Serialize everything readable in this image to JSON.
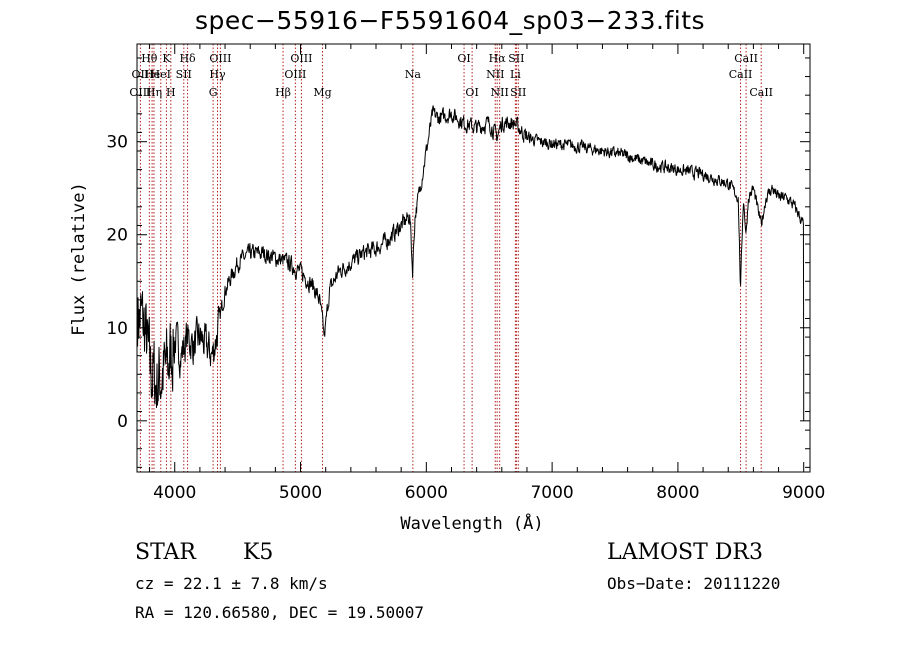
{
  "chart_data": {
    "type": "line",
    "title": "spec−55916−F5591604_sp03−233.fits",
    "xlabel": "Wavelength (Å)",
    "ylabel": "Flux (relative)",
    "xlim": [
      3700,
      9050
    ],
    "ylim": [
      -5.5,
      40.5
    ],
    "xticks": [
      4000,
      5000,
      6000,
      7000,
      8000,
      9000
    ],
    "yticks": [
      0,
      10,
      20,
      30
    ],
    "spectrum_knots": [
      [
        3700,
        12
      ],
      [
        3760,
        10
      ],
      [
        3800,
        6
      ],
      [
        3850,
        4
      ],
      [
        3900,
        5
      ],
      [
        3950,
        6
      ],
      [
        4000,
        9
      ],
      [
        4050,
        7
      ],
      [
        4100,
        9
      ],
      [
        4150,
        8
      ],
      [
        4200,
        9
      ],
      [
        4250,
        8
      ],
      [
        4300,
        7
      ],
      [
        4330,
        9
      ],
      [
        4400,
        14
      ],
      [
        4500,
        17
      ],
      [
        4600,
        18
      ],
      [
        4700,
        18
      ],
      [
        4800,
        17.5
      ],
      [
        4900,
        17
      ],
      [
        5000,
        16
      ],
      [
        5100,
        14.5
      ],
      [
        5150,
        13
      ],
      [
        5190,
        9
      ],
      [
        5230,
        14
      ],
      [
        5300,
        16
      ],
      [
        5400,
        17
      ],
      [
        5500,
        18
      ],
      [
        5600,
        18.5
      ],
      [
        5700,
        19.5
      ],
      [
        5800,
        21
      ],
      [
        5870,
        22
      ],
      [
        5890,
        16
      ],
      [
        5910,
        22
      ],
      [
        5950,
        25
      ],
      [
        6000,
        29
      ],
      [
        6050,
        33
      ],
      [
        6100,
        32.5
      ],
      [
        6200,
        33
      ],
      [
        6300,
        32
      ],
      [
        6400,
        31.5
      ],
      [
        6500,
        32
      ],
      [
        6563,
        30.5
      ],
      [
        6600,
        32
      ],
      [
        6700,
        32
      ],
      [
        6800,
        30.5
      ],
      [
        6900,
        30
      ],
      [
        7000,
        29.8
      ],
      [
        7200,
        29.5
      ],
      [
        7400,
        29
      ],
      [
        7600,
        28.5
      ],
      [
        7800,
        27.5
      ],
      [
        8000,
        27
      ],
      [
        8200,
        26.5
      ],
      [
        8400,
        25.5
      ],
      [
        8480,
        24
      ],
      [
        8498,
        14
      ],
      [
        8520,
        24
      ],
      [
        8542,
        20
      ],
      [
        8560,
        24
      ],
      [
        8600,
        25
      ],
      [
        8662,
        21
      ],
      [
        8700,
        24
      ],
      [
        8750,
        25
      ],
      [
        8800,
        24
      ],
      [
        8850,
        24
      ],
      [
        8900,
        23.5
      ],
      [
        8950,
        22.5
      ],
      [
        9000,
        21
      ]
    ],
    "lines": [
      {
        "name": "Hθ",
        "wave": 3798,
        "row": 1
      },
      {
        "name": "OII",
        "wave": 3727,
        "row": 2
      },
      {
        "name": "OIII",
        "wave": 3727,
        "row": 3
      },
      {
        "name": "He",
        "wave": 3820,
        "row": 2
      },
      {
        "name": "Hη",
        "wave": 3835,
        "row": 3
      },
      {
        "name": "K",
        "wave": 3934,
        "row": 1
      },
      {
        "name": "HeI",
        "wave": 3889,
        "row": 2
      },
      {
        "name": "H",
        "wave": 3969,
        "row": 3
      },
      {
        "name": "Hδ",
        "wave": 4102,
        "row": 1
      },
      {
        "name": "SII",
        "wave": 4072,
        "row": 2
      },
      {
        "name": "OIII",
        "wave": 4363,
        "row": 1
      },
      {
        "name": "Hγ",
        "wave": 4340,
        "row": 2
      },
      {
        "name": "G",
        "wave": 4305,
        "row": 3
      },
      {
        "name": "Hβ",
        "wave": 4861,
        "row": 3
      },
      {
        "name": "OIII",
        "wave": 5007,
        "row": 1
      },
      {
        "name": "OIII",
        "wave": 4959,
        "row": 2
      },
      {
        "name": "Mg",
        "wave": 5175,
        "row": 3
      },
      {
        "name": "Na",
        "wave": 5893,
        "row": 2
      },
      {
        "name": "OI",
        "wave": 6300,
        "row": 1
      },
      {
        "name": "OI",
        "wave": 6364,
        "row": 3
      },
      {
        "name": "Hα",
        "wave": 6563,
        "row": 1
      },
      {
        "name": "SII",
        "wave": 6716,
        "row": 1
      },
      {
        "name": "NII",
        "wave": 6548,
        "row": 2
      },
      {
        "name": "Li",
        "wave": 6708,
        "row": 2
      },
      {
        "name": "NII",
        "wave": 6583,
        "row": 3
      },
      {
        "name": "SII",
        "wave": 6731,
        "row": 3
      },
      {
        "name": "CaII",
        "wave": 8542,
        "row": 1
      },
      {
        "name": "CaII",
        "wave": 8498,
        "row": 2
      },
      {
        "name": "CaII",
        "wave": 8662,
        "row": 3
      }
    ]
  },
  "info": {
    "class": "STAR",
    "subclass": "K5",
    "survey": "LAMOST DR3",
    "cz": "cz = 22.1 ± 7.8 km/s",
    "obs_date": "Obs−Date: 20111220",
    "radec": "RA = 120.66580, DEC =  19.50007"
  }
}
